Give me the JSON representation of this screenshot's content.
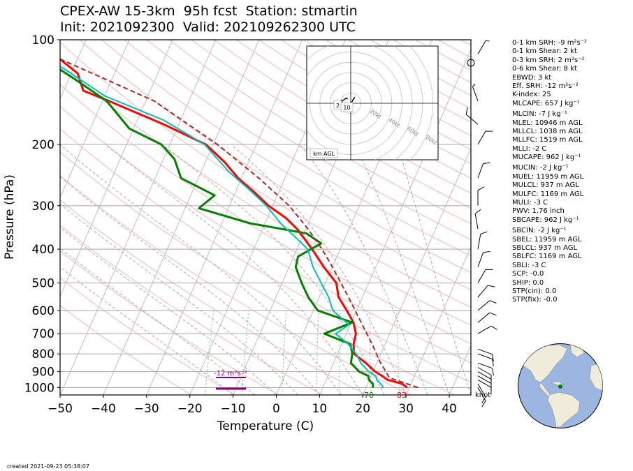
{
  "title": {
    "line1": "CPEX-AW 15-3km  95h fcst  Station: stmartin",
    "line2": "Init: 2021092300  Valid: 202109262300 UTC"
  },
  "footer": {
    "created": "created 2021-09-23 05:38:07"
  },
  "chart_data": {
    "type": "line",
    "subtype": "skew-T log-p",
    "xlabel": "Temperature (C)",
    "ylabel": "Pressure (hPa)",
    "xlim": [
      -50,
      45
    ],
    "ylim": [
      1050,
      100
    ],
    "y_scale": "log",
    "x_ticks": [
      "−50",
      "−40",
      "−30",
      "−20",
      "−10",
      "0",
      "10",
      "20",
      "30",
      "40"
    ],
    "y_ticks": [
      {
        "p": 100,
        "label": "100"
      },
      {
        "p": 200,
        "label": "200"
      },
      {
        "p": 300,
        "label": "300"
      },
      {
        "p": 400,
        "label": "400"
      },
      {
        "p": 500,
        "label": "500"
      },
      {
        "p": 600,
        "label": "600"
      },
      {
        "p": 700,
        "label": "700"
      },
      {
        "p": 800,
        "label": "800"
      },
      {
        "p": 900,
        "label": "900"
      },
      {
        "p": 1000,
        "label": "1000"
      }
    ],
    "grid": true,
    "colors": {
      "temperature": "#ff0000",
      "dewpoint": "#008000",
      "wetbulb": "#00bfbf",
      "parcel": "#a52a2a",
      "dry_adiabat": "#f5b6b6",
      "moist_adiabat": "#a0a0a0",
      "mixing_ratio": "#7fbf7f",
      "srh_bar": "#800080"
    },
    "series": [
      {
        "key": "temperature",
        "points": [
          [
            29.5,
            1000
          ],
          [
            28,
            975
          ],
          [
            24.2,
            950
          ],
          [
            22.5,
            925
          ],
          [
            20.5,
            900
          ],
          [
            17.5,
            850
          ],
          [
            13.8,
            800
          ],
          [
            12.7,
            750
          ],
          [
            12.2,
            700
          ],
          [
            10.5,
            650
          ],
          [
            7.7,
            600
          ],
          [
            4.5,
            550
          ],
          [
            2.5,
            500
          ],
          [
            -2,
            450
          ],
          [
            -6.5,
            400
          ],
          [
            -9.7,
            370
          ],
          [
            -12,
            350
          ],
          [
            -15.8,
            325
          ],
          [
            -21,
            300
          ],
          [
            -25.5,
            275
          ],
          [
            -30.8,
            250
          ],
          [
            -35.5,
            225
          ],
          [
            -41.7,
            200
          ],
          [
            -53.5,
            175
          ],
          [
            -68.5,
            150
          ],
          [
            -75.5,
            140
          ],
          [
            -78.5,
            125
          ],
          [
            -86,
            110
          ],
          [
            -92,
            100
          ]
        ]
      },
      {
        "key": "dewpoint",
        "points": [
          [
            21.6,
            1000
          ],
          [
            21.2,
            975
          ],
          [
            19.9,
            950
          ],
          [
            19.3,
            925
          ],
          [
            16.8,
            900
          ],
          [
            14,
            850
          ],
          [
            13.4,
            800
          ],
          [
            12,
            750
          ],
          [
            4.9,
            700
          ],
          [
            10.2,
            650
          ],
          [
            1,
            600
          ],
          [
            -2.5,
            550
          ],
          [
            -5.5,
            500
          ],
          [
            -8.5,
            450
          ],
          [
            -9,
            420
          ],
          [
            -5,
            385
          ],
          [
            -9.5,
            360
          ],
          [
            -23.5,
            337
          ],
          [
            -36.8,
            305
          ],
          [
            -34.5,
            280
          ],
          [
            -44,
            250
          ],
          [
            -47.5,
            220
          ],
          [
            -52,
            200
          ],
          [
            -61,
            180
          ],
          [
            -69,
            150
          ],
          [
            -78.5,
            130
          ],
          [
            -90,
            110
          ],
          [
            -94,
            100
          ]
        ]
      },
      {
        "key": "wetbulb",
        "points": [
          [
            24,
            1000
          ],
          [
            23,
            975
          ],
          [
            21.7,
            950
          ],
          [
            21.1,
            925
          ],
          [
            19,
            900
          ],
          [
            16.3,
            850
          ],
          [
            14.3,
            800
          ],
          [
            11.5,
            750
          ],
          [
            7.5,
            700
          ],
          [
            9.7,
            660
          ],
          [
            4.5,
            600
          ],
          [
            2.2,
            550
          ],
          [
            -1,
            500
          ],
          [
            -4.5,
            450
          ],
          [
            -7.5,
            400
          ],
          [
            -11.5,
            370
          ],
          [
            -16,
            340
          ],
          [
            -21.5,
            300
          ],
          [
            -27,
            270
          ],
          [
            -33.5,
            240
          ],
          [
            -42,
            200
          ],
          [
            -54,
            170
          ],
          [
            -70,
            145
          ],
          [
            -80,
            125
          ],
          [
            -89,
            110
          ],
          [
            -95,
            100
          ]
        ]
      },
      {
        "key": "parcel",
        "points": [
          [
            32,
            1000
          ],
          [
            24.4,
            937
          ],
          [
            20.5,
            840
          ],
          [
            17,
            750
          ],
          [
            12.3,
            650
          ],
          [
            6.8,
            550
          ],
          [
            0,
            450
          ],
          [
            -4.2,
            400
          ],
          [
            -9.5,
            350
          ],
          [
            -16.2,
            300
          ],
          [
            -26,
            250
          ],
          [
            -39,
            200
          ],
          [
            -58,
            150
          ],
          [
            -96,
            100
          ]
        ]
      }
    ],
    "winds_unit": "knot",
    "winds": [
      {
        "p": 1000,
        "dir": 150,
        "spd": 10
      },
      {
        "p": 975,
        "dir": 150,
        "spd": 10
      },
      {
        "p": 950,
        "dir": 120,
        "spd": 10
      },
      {
        "p": 925,
        "dir": 120,
        "spd": 10
      },
      {
        "p": 900,
        "dir": 120,
        "spd": 10
      },
      {
        "p": 875,
        "dir": 120,
        "spd": 10
      },
      {
        "p": 850,
        "dir": 110,
        "spd": 10
      },
      {
        "p": 800,
        "dir": 110,
        "spd": 10
      },
      {
        "p": 775,
        "dir": 110,
        "spd": 10
      },
      {
        "p": 700,
        "dir": 60,
        "spd": 10
      },
      {
        "p": 650,
        "dir": 50,
        "spd": 10
      },
      {
        "p": 600,
        "dir": 50,
        "spd": 10
      },
      {
        "p": 550,
        "dir": 40,
        "spd": 10
      },
      {
        "p": 500,
        "dir": 30,
        "spd": 10
      },
      {
        "p": 450,
        "dir": 20,
        "spd": 10
      },
      {
        "p": 400,
        "dir": 10,
        "spd": 10
      },
      {
        "p": 350,
        "dir": 350,
        "spd": 10
      },
      {
        "p": 300,
        "dir": 360,
        "spd": 10
      },
      {
        "p": 250,
        "dir": 20,
        "spd": 10
      },
      {
        "p": 200,
        "dir": 30,
        "spd": 10
      },
      {
        "p": 175,
        "dir": 310,
        "spd": 10
      },
      {
        "p": 150,
        "dir": 340,
        "spd": 5
      },
      {
        "p": 110,
        "dir": 30,
        "spd": 5
      }
    ],
    "annotations": {
      "srh_label": "-12 m²s⁻²",
      "surface_dewpoint": "70",
      "surface_temperature": "83",
      "hodograph": {
        "ring_labels": [
          "20kt",
          "40kt",
          "60kt",
          "80kt"
        ],
        "ring_values": [
          20,
          40,
          60,
          80
        ],
        "range_kt": 85,
        "trace": [
          [
            -3,
            4
          ],
          [
            -4,
            5
          ],
          [
            -6,
            4
          ],
          [
            -7,
            3
          ],
          [
            -9,
            3
          ],
          [
            -8,
            0
          ],
          [
            -4,
            -4
          ],
          [
            -1,
            -3
          ],
          [
            2,
            3
          ],
          [
            4,
            6
          ]
        ],
        "height_labels": [
          "2",
          "10"
        ],
        "footer": "km AGL"
      }
    }
  },
  "stats": [
    {
      "text": "0-1 km SRH: -9 m²s⁻²"
    },
    {
      "text": "0-1 km Shear: 2 kt"
    },
    {
      "text": "0-3 km SRH: 2 m²s⁻²"
    },
    {
      "text": "0-6 km Shear: 8 kt"
    },
    {
      "text": "EBWD: 3 kt"
    },
    {
      "text": "Eff. SRH: -12 m²s⁻²"
    },
    {
      "text": "K-index: 25"
    },
    {
      "text": "MLCAPE: 657 J kg⁻¹"
    },
    {
      "text": "MLCIN: -7 J kg⁻¹",
      "gap": true
    },
    {
      "text": "MLEL: 10946 m AGL"
    },
    {
      "text": "MLLCL: 1038 m AGL"
    },
    {
      "text": "MLLFC: 1519 m AGL"
    },
    {
      "text": "MLLI: -2 C"
    },
    {
      "text": "MUCAPE: 962 J kg⁻¹"
    },
    {
      "text": "MUCIN: -2 J kg⁻¹",
      "gap": true
    },
    {
      "text": "MUEL: 11959 m AGL"
    },
    {
      "text": "MULCL: 937 m AGL"
    },
    {
      "text": "MULFC: 1169 m AGL"
    },
    {
      "text": "MULI: -3 C"
    },
    {
      "text": "PWV: 1.76 inch"
    },
    {
      "text": "SBCAPE: 962 J kg⁻¹"
    },
    {
      "text": "SBCIN: -2 J kg⁻¹",
      "gap": true
    },
    {
      "text": "SBEL: 11959 m AGL"
    },
    {
      "text": "SBLCL: 937 m AGL"
    },
    {
      "text": "SBLFC: 1169 m AGL"
    },
    {
      "text": "SBLI: -3 C"
    },
    {
      "text": "SCP: -0.0"
    },
    {
      "text": "SHIP: 0.0"
    },
    {
      "text": "STP(cin): 0.0"
    },
    {
      "text": "STP(fix): -0.0"
    }
  ],
  "globe": {
    "ocean_color": "#9bb6e0",
    "land_color": "#efecdc",
    "marker_color": "#008000"
  }
}
